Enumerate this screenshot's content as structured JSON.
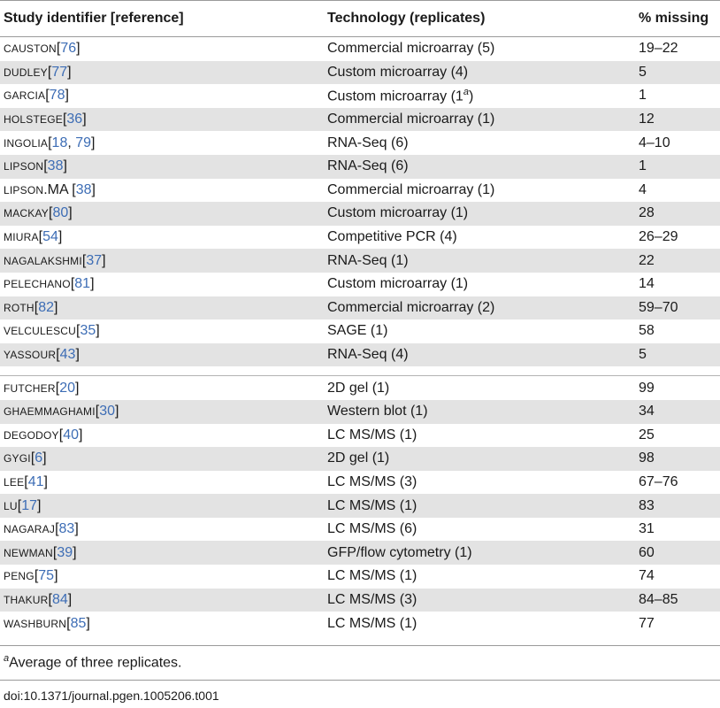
{
  "columns": [
    "Study identifier [reference]",
    "Technology (replicates)",
    "% missing"
  ],
  "group1": [
    {
      "id": "Causton",
      "refs": [
        "76"
      ],
      "tech": "Commercial microarray (5)",
      "missing": "19–22"
    },
    {
      "id": "Dudley",
      "refs": [
        "77"
      ],
      "tech": "Custom microarray (4)",
      "missing": "5"
    },
    {
      "id": "Garcia",
      "refs": [
        "78"
      ],
      "tech": "Custom microarray (1",
      "tech_sup": "a",
      "tech_end": ")",
      "missing": "1"
    },
    {
      "id": "Holstege",
      "refs": [
        "36"
      ],
      "tech": "Commercial microarray (1)",
      "missing": "12"
    },
    {
      "id": "Ingolia",
      "refs": [
        "18",
        "79"
      ],
      "tech": "RNA-Seq (6)",
      "missing": "4–10"
    },
    {
      "id": "Lipson",
      "refs": [
        "38"
      ],
      "tech": "RNA-Seq (6)",
      "missing": "1"
    },
    {
      "id": "Lipson",
      "id_suffix": ".MA",
      "refs": [
        "38"
      ],
      "tech": "Commercial microarray (1)",
      "missing": "4"
    },
    {
      "id": "Mackay",
      "refs": [
        "80"
      ],
      "tech": "Custom microarray (1)",
      "missing": "28"
    },
    {
      "id": "Miura",
      "refs": [
        "54"
      ],
      "tech": "Competitive PCR (4)",
      "missing": "26–29"
    },
    {
      "id": "Nagalakshmi",
      "refs": [
        "37"
      ],
      "tech": "RNA-Seq (1)",
      "missing": "22"
    },
    {
      "id": "Pelechano",
      "refs": [
        "81"
      ],
      "tech": "Custom microarray (1)",
      "missing": "14"
    },
    {
      "id": "Roth",
      "refs": [
        "82"
      ],
      "tech": "Commercial microarray (2)",
      "missing": "59–70"
    },
    {
      "id": "Velculescu",
      "refs": [
        "35"
      ],
      "tech": "SAGE (1)",
      "missing": "58"
    },
    {
      "id": "Yassour",
      "refs": [
        "43"
      ],
      "tech": "RNA-Seq (4)",
      "missing": "5"
    }
  ],
  "group2": [
    {
      "id": "Futcher",
      "refs": [
        "20"
      ],
      "tech": "2D gel (1)",
      "missing": "99"
    },
    {
      "id": "Ghaemmaghami",
      "refs": [
        "30"
      ],
      "tech": "Western blot (1)",
      "missing": "34"
    },
    {
      "id": "deGodoy",
      "refs": [
        "40"
      ],
      "tech": "LC MS/MS (1)",
      "missing": "25"
    },
    {
      "id": "Gygi",
      "refs": [
        "6"
      ],
      "tech": "2D gel (1)",
      "missing": "98"
    },
    {
      "id": "Lee",
      "refs": [
        "41"
      ],
      "tech": "LC MS/MS (3)",
      "missing": "67–76"
    },
    {
      "id": "Lu",
      "refs": [
        "17"
      ],
      "tech": "LC MS/MS (1)",
      "missing": "83"
    },
    {
      "id": "Nagaraj",
      "refs": [
        "83"
      ],
      "tech": "LC MS/MS (6)",
      "missing": "31"
    },
    {
      "id": "Newman",
      "refs": [
        "39"
      ],
      "tech": "GFP/flow cytometry (1)",
      "missing": "60"
    },
    {
      "id": "Peng",
      "refs": [
        "75"
      ],
      "tech": "LC MS/MS (1)",
      "missing": "74"
    },
    {
      "id": "Thakur",
      "refs": [
        "84"
      ],
      "tech": "LC MS/MS (3)",
      "missing": "84–85"
    },
    {
      "id": "Washburn",
      "refs": [
        "85"
      ],
      "tech": "LC MS/MS (1)",
      "missing": "77"
    }
  ],
  "footnote": {
    "marker": "a",
    "text": "Average of three replicates."
  },
  "doi": "doi:10.1371/journal.pgen.1005206.t001"
}
